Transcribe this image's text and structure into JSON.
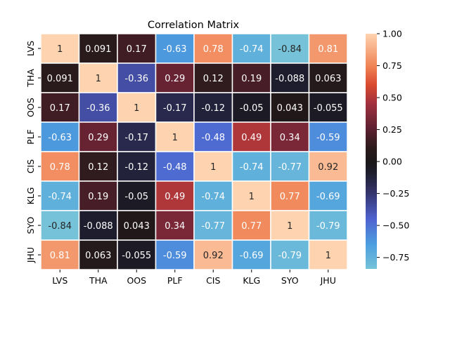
{
  "chart_data": {
    "type": "heatmap",
    "title": "Correlation Matrix",
    "xlabel": "",
    "ylabel": "",
    "labels": [
      "LVS",
      "THA",
      "OOS",
      "PLF",
      "CIS",
      "KLG",
      "SYO",
      "JHU"
    ],
    "matrix": [
      [
        "1",
        "0.091",
        "0.17",
        "-0.63",
        "0.78",
        "-0.74",
        "-0.84",
        "0.81"
      ],
      [
        "0.091",
        "1",
        "-0.36",
        "0.29",
        "0.12",
        "0.19",
        "-0.088",
        "0.063"
      ],
      [
        "0.17",
        "-0.36",
        "1",
        "-0.17",
        "-0.12",
        "-0.05",
        "0.043",
        "-0.055"
      ],
      [
        "-0.63",
        "0.29",
        "-0.17",
        "1",
        "-0.48",
        "0.49",
        "0.34",
        "-0.59"
      ],
      [
        "0.78",
        "0.12",
        "-0.12",
        "-0.48",
        "1",
        "-0.74",
        "-0.77",
        "0.92"
      ],
      [
        "-0.74",
        "0.19",
        "-0.05",
        "0.49",
        "-0.74",
        "1",
        "0.77",
        "-0.69"
      ],
      [
        "-0.84",
        "-0.088",
        "0.043",
        "0.34",
        "-0.77",
        "0.77",
        "1",
        "-0.79"
      ],
      [
        "0.81",
        "0.063",
        "-0.055",
        "-0.59",
        "0.92",
        "-0.69",
        "-0.79",
        "1"
      ]
    ],
    "colorbar": {
      "min": -0.84,
      "max": 1.0,
      "ticks": [
        "1.00",
        "0.75",
        "0.50",
        "0.25",
        "0.00",
        "−0.25",
        "−0.50",
        "−0.75"
      ],
      "colormap": "icefire"
    },
    "grid": true,
    "legend": "colorbar-right"
  }
}
